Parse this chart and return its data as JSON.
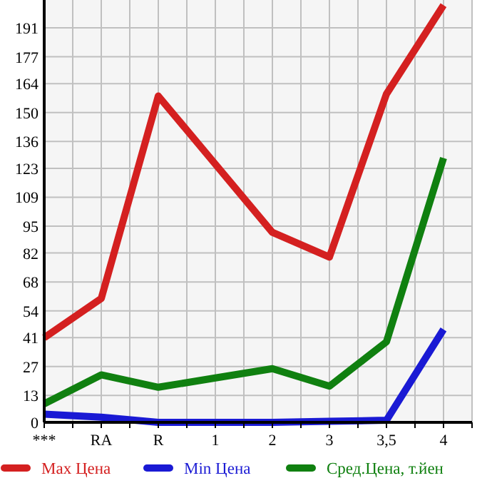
{
  "chart_data": {
    "type": "line",
    "categories": [
      "***",
      "RA",
      "R",
      "1",
      "2",
      "3",
      "3,5",
      "4"
    ],
    "series": [
      {
        "name": "Max Цена",
        "color": "#d42020",
        "values": [
          41,
          60,
          158,
          125,
          92,
          80,
          159,
          202
        ]
      },
      {
        "name": "Min Цена",
        "color": "#1a1ad4",
        "values": [
          4,
          2.5,
          0,
          0,
          0,
          0.5,
          1,
          45
        ]
      },
      {
        "name": "Сред.Цена, т.йен",
        "color": "#108010",
        "values": [
          9,
          23,
          17,
          21.5,
          26,
          17.5,
          39,
          128
        ]
      }
    ],
    "ylim": [
      0,
      204.5
    ],
    "yticks": [
      0,
      13,
      27,
      41,
      54,
      68,
      82,
      95,
      109,
      123,
      136,
      150,
      164,
      177,
      191
    ],
    "grid": true,
    "legend": "bottom",
    "marker": "none",
    "line_style": "solid"
  }
}
